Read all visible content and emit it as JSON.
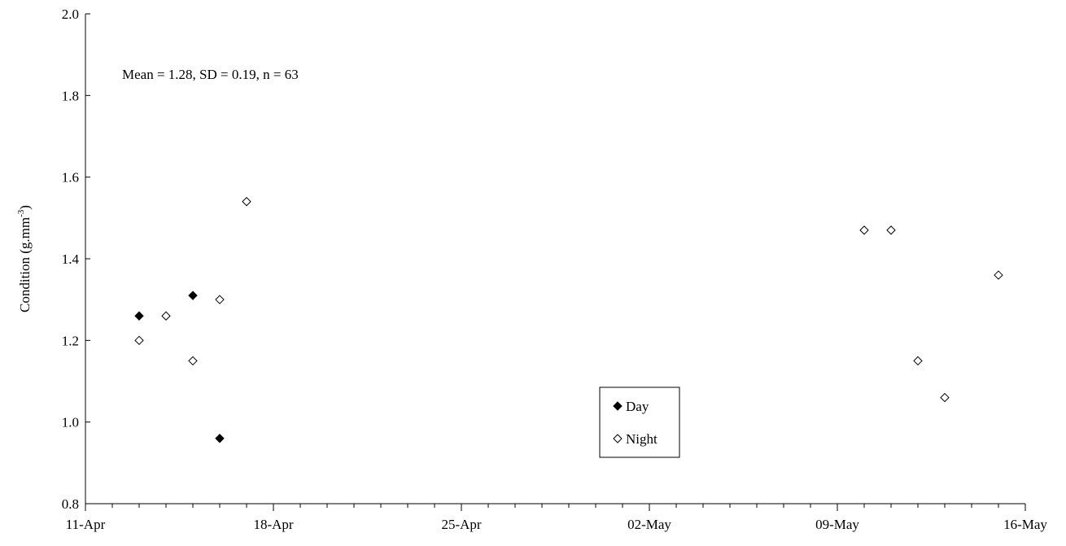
{
  "chart_data": {
    "type": "scatter",
    "title": "",
    "xlabel": "",
    "ylabel": "Condition (g.mm",
    "ylabel_superscript": "-3",
    "ylabel_close": ")",
    "ylim": [
      0.8,
      2.0
    ],
    "yticks": [
      0.8,
      1.0,
      1.2,
      1.4,
      1.6,
      1.8,
      2.0
    ],
    "yticks_text": [
      "0.8",
      "1.0",
      "1.2",
      "1.4",
      "1.6",
      "1.8",
      "2.0"
    ],
    "xlim": [
      "2000-04-11",
      "2000-05-16"
    ],
    "xticks": [
      "2000-04-11",
      "2000-04-18",
      "2000-04-25",
      "2000-05-02",
      "2000-05-09",
      "2000-05-16"
    ],
    "xticks_text": [
      "11-Apr",
      "18-Apr",
      "25-Apr",
      "02-May",
      "09-May",
      "16-May"
    ],
    "grid": false,
    "legend_position": "bottom-center",
    "annotation": "Mean = 1.28, SD = 0.19, n = 63",
    "series": [
      {
        "name": "Day",
        "marker": "filled-diamond",
        "color": "#000000",
        "points": [
          {
            "x": "2000-04-13",
            "y": 1.26
          },
          {
            "x": "2000-04-15",
            "y": 1.31
          },
          {
            "x": "2000-04-16",
            "y": 0.96
          }
        ]
      },
      {
        "name": "Night",
        "marker": "open-diamond",
        "color": "#000000",
        "points": [
          {
            "x": "2000-04-13",
            "y": 1.2
          },
          {
            "x": "2000-04-14",
            "y": 1.26
          },
          {
            "x": "2000-04-15",
            "y": 1.15
          },
          {
            "x": "2000-04-16",
            "y": 1.3
          },
          {
            "x": "2000-04-17",
            "y": 1.54
          },
          {
            "x": "2000-05-10",
            "y": 1.47
          },
          {
            "x": "2000-05-11",
            "y": 1.47
          },
          {
            "x": "2000-05-12",
            "y": 1.15
          },
          {
            "x": "2000-05-13",
            "y": 1.06
          },
          {
            "x": "2000-05-15",
            "y": 1.36
          }
        ]
      }
    ]
  }
}
